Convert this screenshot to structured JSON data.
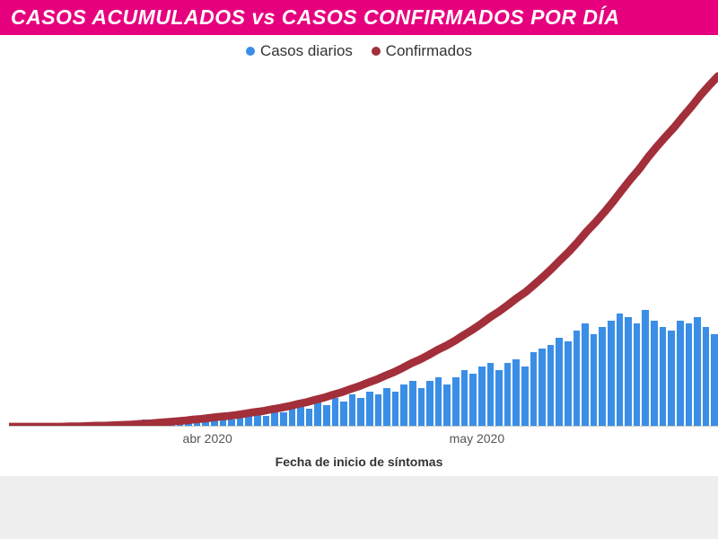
{
  "chart": {
    "type": "bar+line",
    "title": "CASOS ACUMULADOS vs CASOS CONFIRMADOS POR DÍA",
    "title_bg": "#e6007e",
    "title_color": "#ffffff",
    "title_fontsize": 23,
    "background_color": "#ffffff",
    "page_bg": "#f5f5f5",
    "legend": {
      "items": [
        {
          "label": "Casos diarios",
          "color": "#3a8ee6"
        },
        {
          "label": "Confirmados",
          "color": "#a22f3a"
        }
      ],
      "fontsize": 17
    },
    "x_axis": {
      "label": "Fecha de inicio de síntomas",
      "label_fontsize": 14,
      "label_fontweight": "bold",
      "ticks": [
        {
          "pos_pct": 28,
          "label": "abr 2020"
        },
        {
          "pos_pct": 66,
          "label": "may 2020"
        }
      ]
    },
    "bars": {
      "color": "#3a8ee6",
      "ymax": 100,
      "values": [
        0,
        0,
        0,
        0,
        0,
        0,
        0,
        1,
        0,
        1,
        1,
        0,
        1,
        1,
        1,
        2,
        1,
        2,
        2,
        2,
        2,
        3,
        2,
        3,
        3,
        2,
        3,
        4,
        4,
        3,
        5,
        4,
        5,
        6,
        5,
        7,
        6,
        8,
        7,
        9,
        8,
        10,
        9,
        11,
        10,
        12,
        13,
        11,
        13,
        14,
        12,
        14,
        16,
        15,
        17,
        18,
        16,
        18,
        19,
        17,
        21,
        22,
        23,
        25,
        24,
        27,
        29,
        26,
        28,
        30,
        32,
        31,
        29,
        33,
        30,
        28,
        27,
        30,
        29,
        31,
        28,
        26
      ]
    },
    "line": {
      "color": "#a22f3a",
      "width": 3.5,
      "ymax": 1000,
      "values": [
        0,
        0,
        0,
        0,
        0,
        0,
        0,
        1,
        1,
        2,
        3,
        3,
        4,
        5,
        6,
        8,
        9,
        11,
        13,
        15,
        17,
        20,
        22,
        25,
        28,
        30,
        33,
        37,
        41,
        44,
        49,
        53,
        58,
        64,
        69,
        76,
        82,
        90,
        97,
        106,
        114,
        124,
        133,
        144,
        154,
        166,
        179,
        190,
        203,
        217,
        229,
        243,
        259,
        274,
        291,
        309,
        325,
        343,
        362,
        379,
        400,
        422,
        445,
        470,
        494,
        521,
        550,
        576,
        604,
        634,
        666,
        697,
        726,
        759,
        789,
        817,
        844,
        874,
        903,
        934,
        962,
        988
      ]
    }
  }
}
